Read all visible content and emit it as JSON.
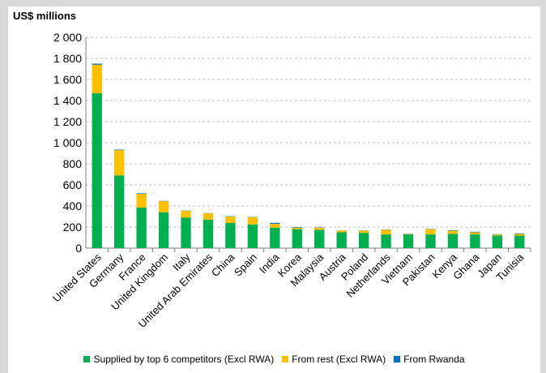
{
  "chart_data": {
    "type": "bar",
    "stacked": true,
    "ylabel": "US$ millions",
    "ylim": [
      0,
      2000
    ],
    "yticks": [
      "0",
      "200",
      "400",
      "600",
      "800",
      "1 000",
      "1 200",
      "1 400",
      "1 600",
      "1 800",
      "2 000"
    ],
    "grid": true,
    "legend_position": "bottom",
    "categories": [
      "United States",
      "Germany",
      "France",
      "United Kingdom",
      "Italy",
      "United Arab Emirates",
      "China",
      "Spain",
      "India",
      "Korea",
      "Malaysia",
      "Austria",
      "Poland",
      "Netherlands",
      "Vietnam",
      "Pakistan",
      "Kenya",
      "Ghana",
      "Japan",
      "Tunisia"
    ],
    "series": [
      {
        "name": "Supplied by top 6 competitors (Excl RWA)",
        "color": "#00b050",
        "values": [
          1470,
          690,
          385,
          340,
          290,
          270,
          240,
          225,
          195,
          180,
          175,
          150,
          145,
          130,
          130,
          130,
          135,
          130,
          120,
          120
        ]
      },
      {
        "name": "From rest (Excl RWA)",
        "color": "#ffc000",
        "values": [
          270,
          240,
          130,
          105,
          65,
          60,
          60,
          70,
          35,
          15,
          20,
          15,
          20,
          45,
          5,
          50,
          30,
          20,
          10,
          15
        ]
      },
      {
        "name": "From Rwanda",
        "color": "#0070c0",
        "values": [
          10,
          5,
          5,
          3,
          2,
          2,
          3,
          2,
          10,
          5,
          3,
          2,
          2,
          2,
          2,
          2,
          5,
          5,
          3,
          5
        ]
      }
    ]
  }
}
